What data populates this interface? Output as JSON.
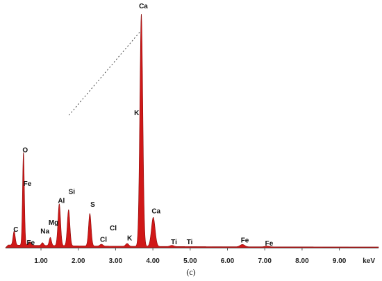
{
  "panel_label": "(c)",
  "chart_data": {
    "type": "area",
    "title": "",
    "xlabel": "keV",
    "ylabel": "",
    "xlim": [
      0.05,
      10.05
    ],
    "ylim": [
      0,
      100
    ],
    "x_ticks": [
      {
        "value": 1.0,
        "label": "1.00"
      },
      {
        "value": 2.0,
        "label": "2.00"
      },
      {
        "value": 3.0,
        "label": "3.00"
      },
      {
        "value": 4.0,
        "label": "4.00"
      },
      {
        "value": 5.0,
        "label": "5.00"
      },
      {
        "value": 6.0,
        "label": "6.00"
      },
      {
        "value": 7.0,
        "label": "7.00"
      },
      {
        "value": 8.0,
        "label": "8.00"
      },
      {
        "value": 9.0,
        "label": "9.00"
      }
    ],
    "fill_color": "#d01818",
    "baseline": 0.9,
    "peaks": [
      {
        "x": 0.28,
        "y": 6,
        "w": 0.03
      },
      {
        "x": 0.53,
        "y": 40,
        "w": 0.025
      },
      {
        "x": 0.7,
        "y": 1.5,
        "w": 0.04
      },
      {
        "x": 1.04,
        "y": 1.2,
        "w": 0.03
      },
      {
        "x": 1.25,
        "y": 3.5,
        "w": 0.03
      },
      {
        "x": 1.49,
        "y": 18,
        "w": 0.035
      },
      {
        "x": 1.74,
        "y": 15.5,
        "w": 0.035
      },
      {
        "x": 2.31,
        "y": 14,
        "w": 0.035
      },
      {
        "x": 2.62,
        "y": 0.8,
        "w": 0.04
      },
      {
        "x": 3.31,
        "y": 1.2,
        "w": 0.04
      },
      {
        "x": 3.69,
        "y": 100,
        "w": 0.04
      },
      {
        "x": 4.01,
        "y": 12.5,
        "w": 0.05
      },
      {
        "x": 4.51,
        "y": 0.5,
        "w": 0.05
      },
      {
        "x": 6.4,
        "y": 1.0,
        "w": 0.06
      },
      {
        "x": 7.06,
        "y": 0.3,
        "w": 0.06
      }
    ],
    "element_labels": [
      {
        "text": "C",
        "x": 0.27,
        "y": 6.8
      },
      {
        "text": "O",
        "x": 0.52,
        "y": 41
      },
      {
        "text": "Fe",
        "x": 0.58,
        "y": 26.5
      },
      {
        "text": "Fe",
        "x": 0.67,
        "y": 1.2
      },
      {
        "text": "Na",
        "x": 1.05,
        "y": 6.1
      },
      {
        "text": "Mg",
        "x": 1.28,
        "y": 9.8
      },
      {
        "text": "Al",
        "x": 1.49,
        "y": 19.2
      },
      {
        "text": "Si",
        "x": 1.77,
        "y": 23.2
      },
      {
        "text": "S",
        "x": 2.33,
        "y": 17.6
      },
      {
        "text": "Cl",
        "x": 2.62,
        "y": 2.6
      },
      {
        "text": "Cl",
        "x": 2.88,
        "y": 7.4
      },
      {
        "text": "K",
        "x": 3.32,
        "y": 3.1
      },
      {
        "text": "K",
        "x": 3.51,
        "y": 57
      },
      {
        "text": "Ca",
        "x": 3.69,
        "y": 103
      },
      {
        "text": "Ca",
        "x": 4.03,
        "y": 14.8
      },
      {
        "text": "Ti",
        "x": 4.51,
        "y": 1.5
      },
      {
        "text": "Ti",
        "x": 4.93,
        "y": 1.5
      },
      {
        "text": "Fe",
        "x": 6.41,
        "y": 2.2
      },
      {
        "text": "Fe",
        "x": 7.06,
        "y": 0.9
      }
    ]
  }
}
